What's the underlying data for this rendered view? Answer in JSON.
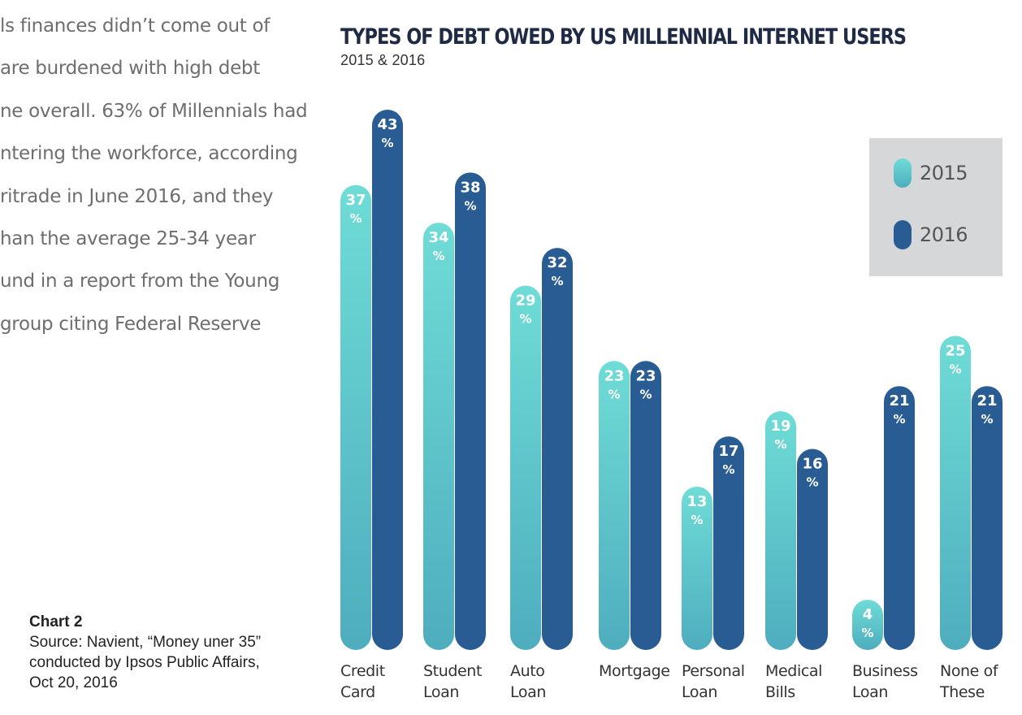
{
  "body_text": [
    "ls finances didn’t come out of",
    "are burdened with high debt",
    "ne overall. 63% of Millennials had",
    "ntering the workforce, according",
    "ritrade in June 2016, and they",
    "han the average 25-34 year",
    "und in a report from the Young",
    " group citing Federal Reserve"
  ],
  "caption": {
    "title": "Chart 2",
    "source": "Source: Navient, “Money uner 35”\nconducted by Ipsos Public Affairs,\nOct 20, 2016"
  },
  "chart_data": {
    "type": "bar",
    "title": "TYPES OF DEBT OWED BY US MILLENNIAL INTERNET USERS",
    "subtitle": "2015 & 2016",
    "categories": [
      [
        "Credit",
        "Card"
      ],
      [
        "Student",
        "Loan"
      ],
      [
        "Auto",
        "Loan"
      ],
      [
        "Mortgage"
      ],
      [
        "Personal",
        "Loan"
      ],
      [
        "Medical",
        "Bills"
      ],
      [
        "Business",
        "Loan"
      ],
      [
        "None of",
        "These"
      ]
    ],
    "series": [
      {
        "name": "2015",
        "values": [
          37,
          34,
          29,
          23,
          13,
          19,
          4,
          25
        ],
        "color_top": "#6fdcd6",
        "color_bottom": "#4eadbe"
      },
      {
        "name": "2016",
        "values": [
          43,
          38,
          32,
          23,
          17,
          16,
          21,
          21
        ],
        "color_top": "#2a5c94",
        "color_bottom": "#2a5c94"
      }
    ],
    "value_suffix": "%",
    "ylim": [
      0,
      43
    ],
    "grid": false,
    "legend_position": "top-right"
  }
}
